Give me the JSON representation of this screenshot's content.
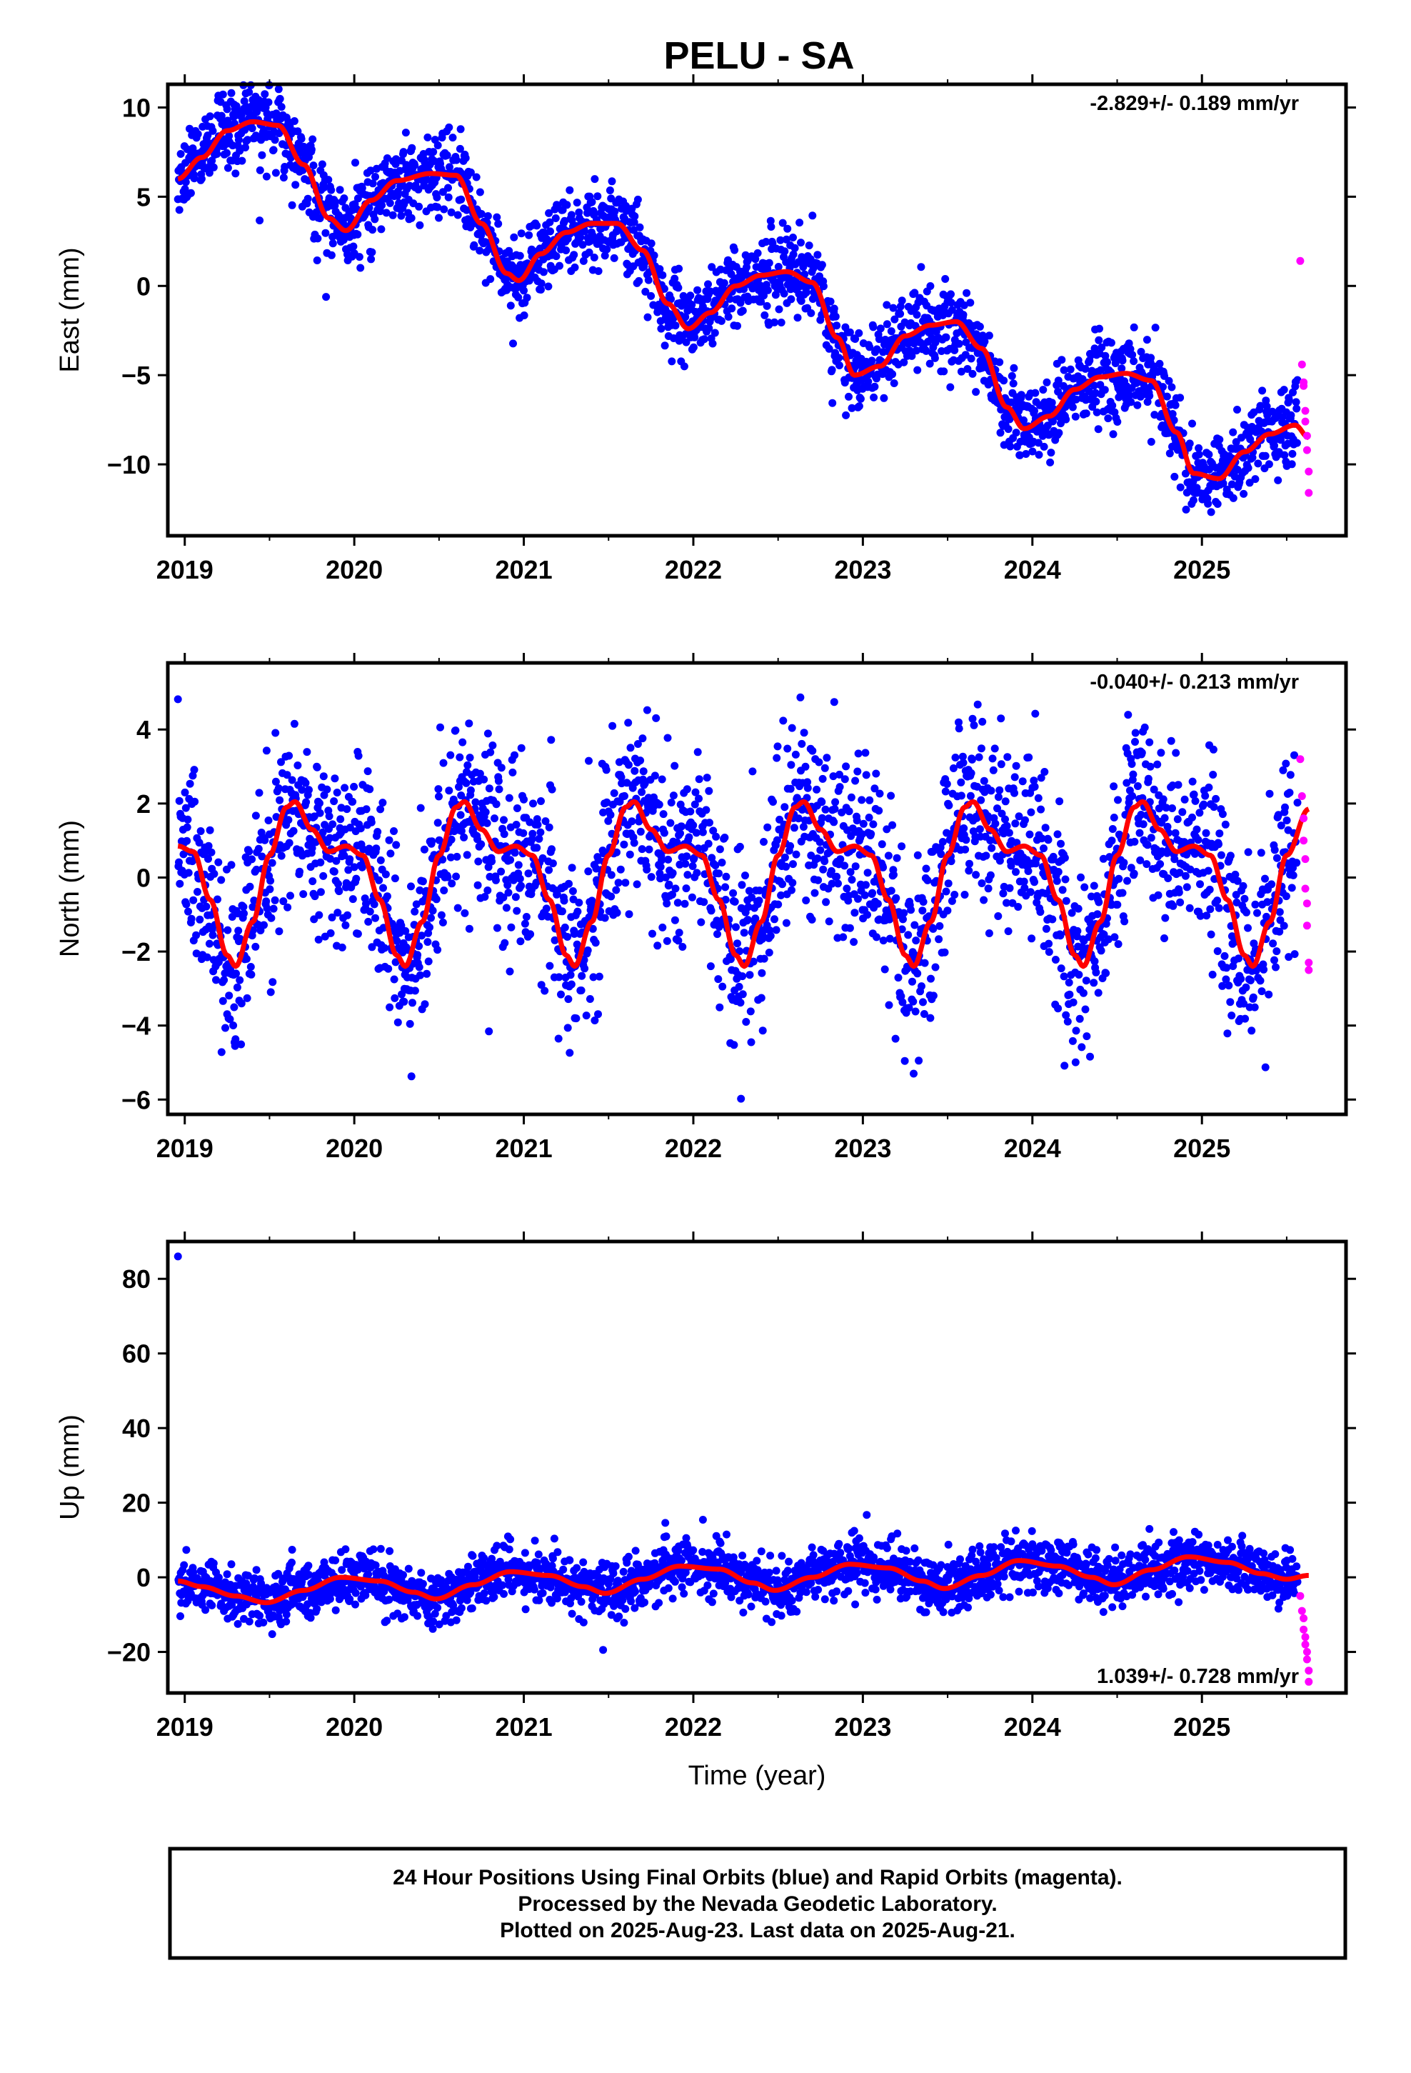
{
  "title": "PELU - SA",
  "colors": {
    "final_orbits": "#0000ff",
    "rapid_orbits": "#ff00ff",
    "model": "#ff0000",
    "frame": "#000000"
  },
  "chart_data": [
    {
      "type": "scatter",
      "component": "East",
      "ylabel": "East (mm)",
      "xlabel": "",
      "xlim": [
        2018.9,
        2025.85
      ],
      "ylim": [
        -14,
        11.3
      ],
      "xticks": [
        2019,
        2020,
        2021,
        2022,
        2023,
        2024,
        2025
      ],
      "yticks": [
        10,
        5,
        0,
        -5,
        -10
      ],
      "ytick_labels": [
        "10",
        "5",
        "0",
        "−5",
        "−10"
      ],
      "rate_label": "-2.829+/- 0.189 mm/yr",
      "rate_position": "top-right",
      "model": {
        "name": "fit",
        "x": [
          2018.96,
          2019.1,
          2019.25,
          2019.4,
          2019.55,
          2019.7,
          2019.85,
          2019.95,
          2020.1,
          2020.25,
          2020.45,
          2020.6,
          2020.75,
          2020.9,
          2020.97,
          2021.1,
          2021.25,
          2021.4,
          2021.55,
          2021.7,
          2021.85,
          2021.97,
          2022.1,
          2022.25,
          2022.4,
          2022.55,
          2022.7,
          2022.85,
          2022.95,
          2023.1,
          2023.25,
          2023.4,
          2023.55,
          2023.7,
          2023.85,
          2023.95,
          2024.1,
          2024.25,
          2024.4,
          2024.55,
          2024.7,
          2024.85,
          2024.95,
          2025.1,
          2025.25,
          2025.4,
          2025.55,
          2025.63
        ],
        "y": [
          6.0,
          7.2,
          8.7,
          9.2,
          9.0,
          6.8,
          3.8,
          3.1,
          4.8,
          5.9,
          6.3,
          6.2,
          3.5,
          0.7,
          0.3,
          1.8,
          3.0,
          3.5,
          3.5,
          2.0,
          -1.0,
          -2.4,
          -1.5,
          0.0,
          0.6,
          0.8,
          0.2,
          -2.9,
          -5.0,
          -4.5,
          -2.8,
          -2.2,
          -2.0,
          -3.5,
          -6.8,
          -8.0,
          -7.3,
          -5.8,
          -5.1,
          -4.9,
          -5.3,
          -8.2,
          -10.5,
          -10.8,
          -9.3,
          -8.3,
          -7.8,
          -8.5
        ]
      },
      "final_orbits_scatter_std": 1.1,
      "rapid_orbits_points": {
        "x": [
          2025.58,
          2025.59,
          2025.6,
          2025.6,
          2025.61,
          2025.61,
          2025.62,
          2025.62,
          2025.63,
          2025.63
        ],
        "y": [
          1.4,
          -4.4,
          -5.4,
          -5.6,
          -7.0,
          -7.6,
          -8.4,
          -9.2,
          -10.4,
          -11.6
        ]
      }
    },
    {
      "type": "scatter",
      "component": "North",
      "ylabel": "North (mm)",
      "xlabel": "",
      "xlim": [
        2018.9,
        2025.85
      ],
      "ylim": [
        -6.4,
        5.8
      ],
      "xticks": [
        2019,
        2020,
        2021,
        2022,
        2023,
        2024,
        2025
      ],
      "yticks": [
        4,
        2,
        0,
        -2,
        -4,
        -6
      ],
      "ytick_labels": [
        "4",
        "2",
        "0",
        "−2",
        "−4",
        "−6"
      ],
      "rate_label": "-0.040+/- 0.213 mm/yr",
      "rate_position": "top-right",
      "model": {
        "name": "fit",
        "x": [
          2018.96,
          2019.05,
          2019.15,
          2019.25,
          2019.3,
          2019.4,
          2019.5,
          2019.6,
          2019.65,
          2019.75,
          2019.85,
          2019.95,
          2020.05,
          2020.15,
          2020.25,
          2020.3,
          2020.4,
          2020.5,
          2020.6,
          2020.65,
          2020.75,
          2020.85,
          2020.95,
          2021.05,
          2021.15,
          2021.25,
          2021.3,
          2021.4,
          2021.5,
          2021.6,
          2021.65,
          2021.75,
          2021.85,
          2021.95,
          2022.05,
          2022.15,
          2022.25,
          2022.3,
          2022.4,
          2022.5,
          2022.6,
          2022.65,
          2022.75,
          2022.85,
          2022.95,
          2023.05,
          2023.15,
          2023.25,
          2023.3,
          2023.4,
          2023.5,
          2023.6,
          2023.65,
          2023.75,
          2023.85,
          2023.95,
          2024.05,
          2024.15,
          2024.25,
          2024.3,
          2024.4,
          2024.5,
          2024.6,
          2024.65,
          2024.75,
          2024.85,
          2024.95,
          2025.05,
          2025.15,
          2025.25,
          2025.3,
          2025.4,
          2025.5,
          2025.63
        ],
        "y": [
          0.85,
          0.7,
          -0.6,
          -2.1,
          -2.4,
          -1.2,
          0.6,
          1.9,
          2.05,
          1.3,
          0.7,
          0.85,
          0.6,
          -0.6,
          -2.1,
          -2.4,
          -1.2,
          0.6,
          1.9,
          2.05,
          1.3,
          0.7,
          0.85,
          0.6,
          -0.6,
          -2.1,
          -2.4,
          -1.2,
          0.6,
          1.9,
          2.05,
          1.3,
          0.7,
          0.85,
          0.6,
          -0.6,
          -2.1,
          -2.4,
          -1.2,
          0.6,
          1.9,
          2.05,
          1.3,
          0.7,
          0.85,
          0.6,
          -0.6,
          -2.1,
          -2.4,
          -1.2,
          0.6,
          1.9,
          2.05,
          1.3,
          0.7,
          0.85,
          0.6,
          -0.6,
          -2.1,
          -2.4,
          -1.2,
          0.6,
          1.9,
          2.05,
          1.3,
          0.7,
          0.85,
          0.6,
          -0.6,
          -2.1,
          -2.4,
          -1.2,
          0.6,
          1.85
        ]
      },
      "final_orbits_scatter_std": 1.2,
      "rapid_orbits_points": {
        "x": [
          2025.58,
          2025.59,
          2025.6,
          2025.6,
          2025.61,
          2025.61,
          2025.62,
          2025.62,
          2025.63,
          2025.63
        ],
        "y": [
          3.2,
          2.2,
          1.6,
          1.0,
          0.5,
          -0.3,
          -0.7,
          -1.3,
          -2.3,
          -2.5
        ]
      }
    },
    {
      "type": "scatter",
      "component": "Up",
      "ylabel": "Up (mm)",
      "xlabel": "Time (year)",
      "xlim": [
        2018.9,
        2025.85
      ],
      "ylim": [
        -31,
        90
      ],
      "xticks": [
        2019,
        2020,
        2021,
        2022,
        2023,
        2024,
        2025
      ],
      "yticks": [
        80,
        60,
        40,
        20,
        0,
        -20
      ],
      "ytick_labels": [
        "80",
        "60",
        "40",
        "20",
        "0",
        "−20"
      ],
      "rate_label": "1.039+/- 0.728 mm/yr",
      "rate_position": "bottom-right",
      "model": {
        "name": "fit",
        "x": [
          2018.96,
          2019.1,
          2019.3,
          2019.48,
          2019.7,
          2019.92,
          2020.15,
          2020.35,
          2020.48,
          2020.7,
          2020.92,
          2021.15,
          2021.35,
          2021.48,
          2021.7,
          2021.92,
          2022.15,
          2022.35,
          2022.48,
          2022.7,
          2022.92,
          2023.15,
          2023.35,
          2023.48,
          2023.7,
          2023.92,
          2024.15,
          2024.35,
          2024.48,
          2024.7,
          2024.92,
          2025.15,
          2025.35,
          2025.5,
          2025.63
        ],
        "y": [
          -1.0,
          -2.5,
          -5.0,
          -6.8,
          -3.5,
          0.0,
          -1.0,
          -4.0,
          -5.8,
          -2.0,
          1.5,
          0.5,
          -2.5,
          -4.3,
          -0.5,
          3.0,
          2.2,
          -1.5,
          -3.5,
          0.0,
          3.5,
          2.5,
          -1.0,
          -3.0,
          0.5,
          4.5,
          3.0,
          0.0,
          -2.0,
          2.0,
          5.5,
          4.0,
          1.0,
          -0.5,
          0.5
        ]
      },
      "final_orbits_scatter_std": 3.5,
      "outlier_points": {
        "x": [
          2018.96
        ],
        "y": [
          86
        ]
      },
      "rapid_orbits_points": {
        "x": [
          2025.58,
          2025.59,
          2025.6,
          2025.6,
          2025.61,
          2025.61,
          2025.62,
          2025.62,
          2025.63,
          2025.63
        ],
        "y": [
          -5,
          -9,
          -11,
          -14,
          -16,
          -18,
          -20,
          -22,
          -25,
          -28
        ]
      }
    }
  ],
  "footer": {
    "line1": "24 Hour Positions Using Final Orbits (blue) and Rapid Orbits (magenta).",
    "line2": "Processed by the Nevada Geodetic Laboratory.",
    "line3": "Plotted on 2025-Aug-23. Last data on 2025-Aug-21."
  }
}
